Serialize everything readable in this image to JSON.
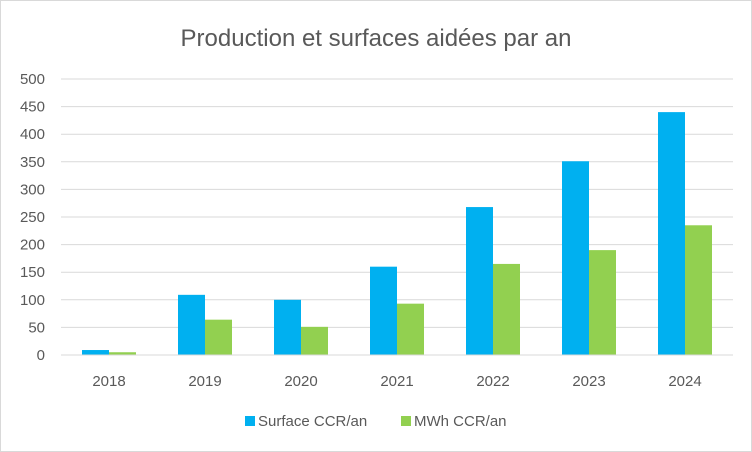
{
  "chart_data": {
    "type": "bar",
    "title": "Production et surfaces aidées par an",
    "xlabel": "",
    "ylabel": "",
    "categories": [
      "2018",
      "2019",
      "2020",
      "2021",
      "2022",
      "2023",
      "2024"
    ],
    "series": [
      {
        "name": "Surface CCR/an",
        "color": "#00b0f0",
        "values": [
          9,
          109,
          100,
          160,
          268,
          351,
          440
        ]
      },
      {
        "name": "MWh CCR/an",
        "color": "#92d050",
        "values": [
          5,
          64,
          51,
          93,
          165,
          190,
          235
        ]
      }
    ],
    "ylim": [
      0,
      500
    ],
    "yticks": [
      "0",
      "50",
      "100",
      "150",
      "200",
      "250",
      "300",
      "350",
      "400",
      "450",
      "500"
    ],
    "grid": true,
    "legend": "bottom"
  }
}
